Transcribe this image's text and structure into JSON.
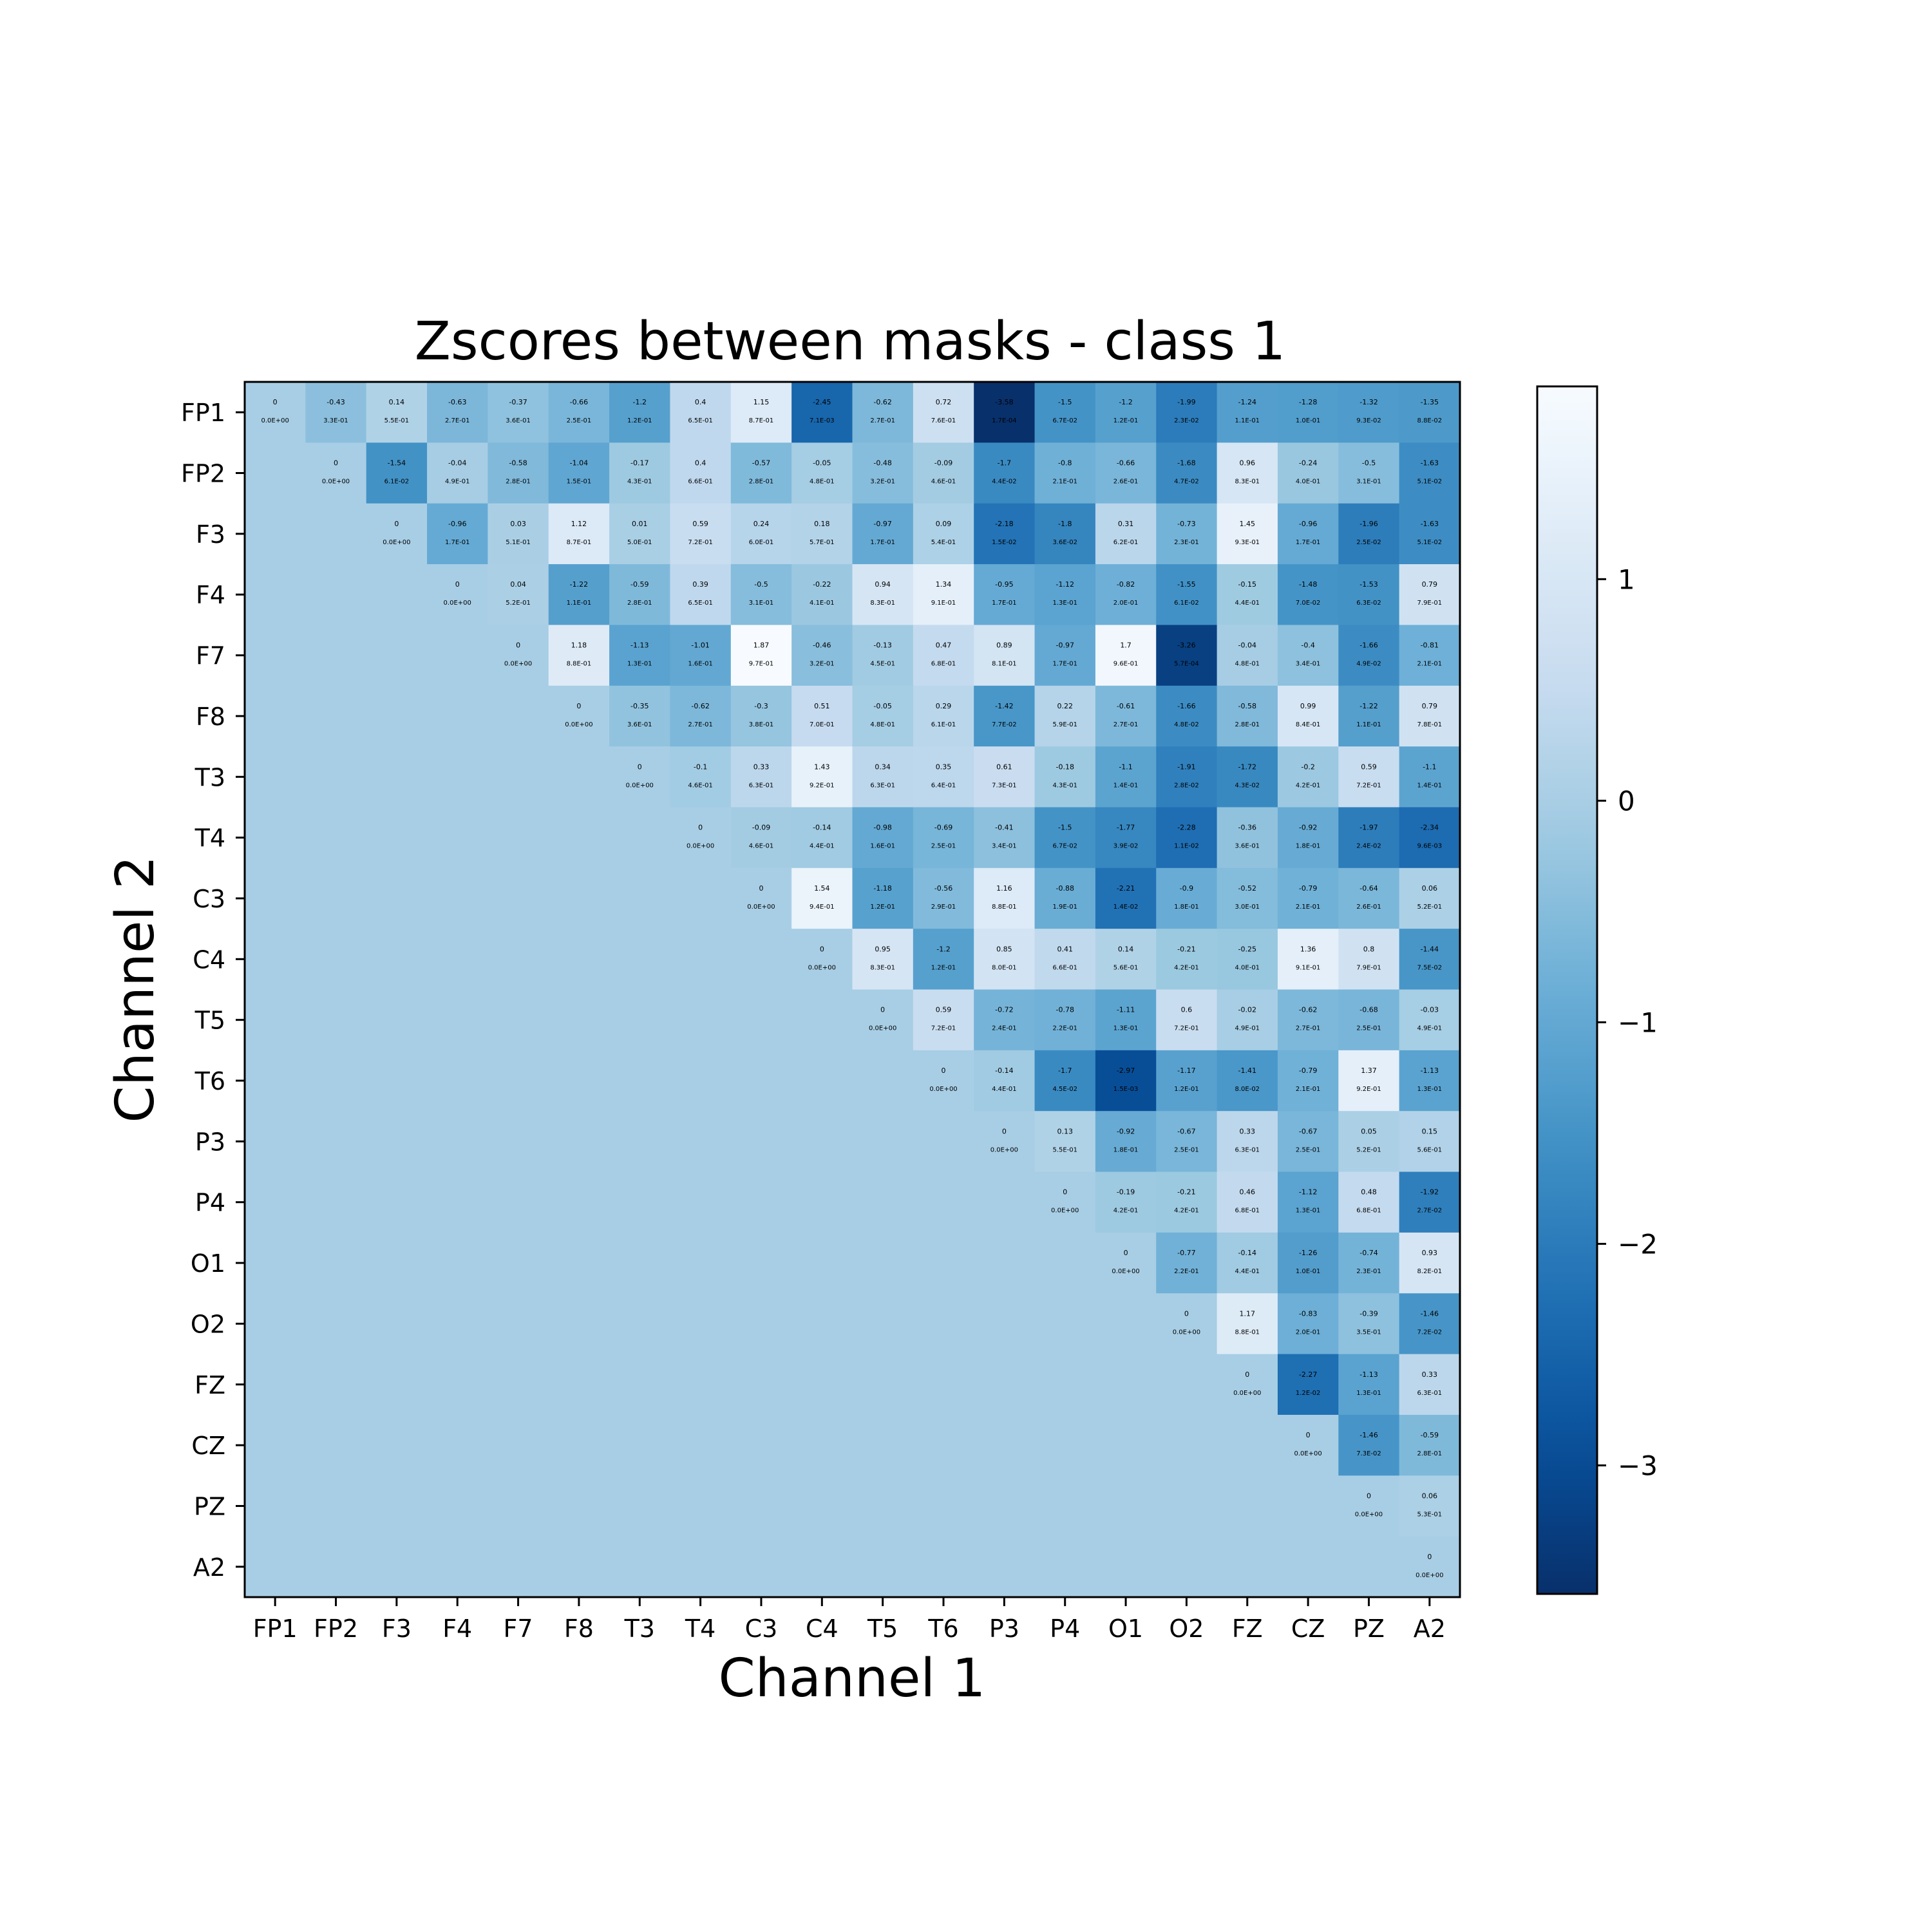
{
  "chart_data": {
    "type": "heatmap",
    "title": "Zscores between masks - class 1",
    "xlabel": "Channel 1",
    "ylabel": "Channel 2",
    "channels": [
      "FP1",
      "FP2",
      "F3",
      "F4",
      "F7",
      "F8",
      "T3",
      "T4",
      "C3",
      "C4",
      "T5",
      "T6",
      "P3",
      "P4",
      "O1",
      "O2",
      "FZ",
      "CZ",
      "PZ",
      "A2"
    ],
    "colormap": "Blues_r",
    "vmin": -3.58,
    "vmax": 1.87,
    "colorbar_ticks": [
      1,
      0,
      -1,
      -2,
      -3
    ],
    "colorbar_tick_labels": [
      "1",
      "0",
      "−1",
      "−2",
      "−3"
    ],
    "lower_triangle_value": 0.0,
    "zscores": [
      [
        0.0,
        -0.43,
        0.14,
        -0.63,
        -0.37,
        -0.66,
        -1.2,
        0.4,
        1.15,
        -2.45,
        -0.62,
        0.72,
        -3.58,
        -1.5,
        -1.2,
        -1.99,
        -1.24,
        -1.28,
        -1.32,
        -1.35
      ],
      [
        null,
        0.0,
        -1.54,
        -0.04,
        -0.58,
        -1.04,
        -0.17,
        0.4,
        -0.57,
        -0.05,
        -0.48,
        -0.09,
        -1.7,
        -0.8,
        -0.66,
        -1.68,
        0.96,
        -0.24,
        -0.5,
        -1.63
      ],
      [
        null,
        null,
        0.0,
        -0.96,
        0.03,
        1.12,
        0.01,
        0.59,
        0.24,
        0.18,
        -0.97,
        0.09,
        -2.18,
        -1.8,
        0.31,
        -0.73,
        1.45,
        -0.96,
        -1.96,
        -1.63
      ],
      [
        null,
        null,
        null,
        0.0,
        0.04,
        -1.22,
        -0.59,
        0.39,
        -0.5,
        -0.22,
        0.94,
        1.34,
        -0.95,
        -1.12,
        -0.82,
        -1.55,
        -0.15,
        -1.48,
        -1.53,
        0.79
      ],
      [
        null,
        null,
        null,
        null,
        0.0,
        1.18,
        -1.13,
        -1.01,
        1.87,
        -0.46,
        -0.13,
        0.47,
        0.89,
        -0.97,
        1.7,
        -3.26,
        -0.04,
        -0.4,
        -1.66,
        -0.81
      ],
      [
        null,
        null,
        null,
        null,
        null,
        0.0,
        -0.35,
        -0.62,
        -0.3,
        0.51,
        -0.05,
        0.29,
        -1.42,
        0.22,
        -0.61,
        -1.66,
        -0.58,
        0.99,
        -1.22,
        0.79
      ],
      [
        null,
        null,
        null,
        null,
        null,
        null,
        0.0,
        -0.1,
        0.33,
        1.43,
        0.34,
        0.35,
        0.61,
        -0.18,
        -1.1,
        -1.91,
        -1.72,
        -0.2,
        0.59,
        -1.1
      ],
      [
        null,
        null,
        null,
        null,
        null,
        null,
        null,
        0.0,
        -0.09,
        -0.14,
        -0.98,
        -0.69,
        -0.41,
        -1.5,
        -1.77,
        -2.28,
        -0.36,
        -0.92,
        -1.97,
        -2.34
      ],
      [
        null,
        null,
        null,
        null,
        null,
        null,
        null,
        null,
        0.0,
        1.54,
        -1.18,
        -0.56,
        1.16,
        -0.88,
        -2.21,
        -0.9,
        -0.52,
        -0.79,
        -0.64,
        0.06
      ],
      [
        null,
        null,
        null,
        null,
        null,
        null,
        null,
        null,
        null,
        0.0,
        0.95,
        -1.2,
        0.85,
        0.41,
        0.14,
        -0.21,
        -0.25,
        1.36,
        0.8,
        -1.44
      ],
      [
        null,
        null,
        null,
        null,
        null,
        null,
        null,
        null,
        null,
        null,
        0.0,
        0.59,
        -0.72,
        -0.78,
        -1.11,
        0.6,
        -0.02,
        -0.62,
        -0.68,
        -0.03
      ],
      [
        null,
        null,
        null,
        null,
        null,
        null,
        null,
        null,
        null,
        null,
        null,
        0.0,
        -0.14,
        -1.7,
        -2.97,
        -1.17,
        -1.41,
        -0.79,
        1.37,
        -1.13
      ],
      [
        null,
        null,
        null,
        null,
        null,
        null,
        null,
        null,
        null,
        null,
        null,
        null,
        0.0,
        0.13,
        -0.92,
        -0.67,
        0.33,
        -0.67,
        0.05,
        0.15
      ],
      [
        null,
        null,
        null,
        null,
        null,
        null,
        null,
        null,
        null,
        null,
        null,
        null,
        null,
        0.0,
        -0.19,
        -0.21,
        0.46,
        -1.12,
        0.48,
        -1.92
      ],
      [
        null,
        null,
        null,
        null,
        null,
        null,
        null,
        null,
        null,
        null,
        null,
        null,
        null,
        null,
        0.0,
        -0.77,
        -0.14,
        -1.26,
        -0.74,
        0.93
      ],
      [
        null,
        null,
        null,
        null,
        null,
        null,
        null,
        null,
        null,
        null,
        null,
        null,
        null,
        null,
        null,
        0.0,
        1.17,
        -0.83,
        -0.39,
        -1.46
      ],
      [
        null,
        null,
        null,
        null,
        null,
        null,
        null,
        null,
        null,
        null,
        null,
        null,
        null,
        null,
        null,
        null,
        0.0,
        -2.27,
        -1.13,
        0.33
      ],
      [
        null,
        null,
        null,
        null,
        null,
        null,
        null,
        null,
        null,
        null,
        null,
        null,
        null,
        null,
        null,
        null,
        null,
        0.0,
        -1.46,
        -0.59
      ],
      [
        null,
        null,
        null,
        null,
        null,
        null,
        null,
        null,
        null,
        null,
        null,
        null,
        null,
        null,
        null,
        null,
        null,
        null,
        0.0,
        0.06
      ],
      [
        null,
        null,
        null,
        null,
        null,
        null,
        null,
        null,
        null,
        null,
        null,
        null,
        null,
        null,
        null,
        null,
        null,
        null,
        null,
        0.0
      ]
    ],
    "pvalues": [
      [
        "0.0E+00",
        "3.3E-01",
        "5.5E-01",
        "2.7E-01",
        "3.6E-01",
        "2.5E-01",
        "1.2E-01",
        "6.5E-01",
        "8.7E-01",
        "7.1E-03",
        "2.7E-01",
        "7.6E-01",
        "1.7E-04",
        "6.7E-02",
        "1.2E-01",
        "2.3E-02",
        "1.1E-01",
        "1.0E-01",
        "9.3E-02",
        "8.8E-02"
      ],
      [
        null,
        "0.0E+00",
        "6.1E-02",
        "4.9E-01",
        "2.8E-01",
        "1.5E-01",
        "4.3E-01",
        "6.6E-01",
        "2.8E-01",
        "4.8E-01",
        "3.2E-01",
        "4.6E-01",
        "4.4E-02",
        "2.1E-01",
        "2.6E-01",
        "4.7E-02",
        "8.3E-01",
        "4.0E-01",
        "3.1E-01",
        "5.1E-02"
      ],
      [
        null,
        null,
        "0.0E+00",
        "1.7E-01",
        "5.1E-01",
        "8.7E-01",
        "5.0E-01",
        "7.2E-01",
        "6.0E-01",
        "5.7E-01",
        "1.7E-01",
        "5.4E-01",
        "1.5E-02",
        "3.6E-02",
        "6.2E-01",
        "2.3E-01",
        "9.3E-01",
        "1.7E-01",
        "2.5E-02",
        "5.1E-02"
      ],
      [
        null,
        null,
        null,
        "0.0E+00",
        "5.2E-01",
        "1.1E-01",
        "2.8E-01",
        "6.5E-01",
        "3.1E-01",
        "4.1E-01",
        "8.3E-01",
        "9.1E-01",
        "1.7E-01",
        "1.3E-01",
        "2.0E-01",
        "6.1E-02",
        "4.4E-01",
        "7.0E-02",
        "6.3E-02",
        "7.9E-01"
      ],
      [
        null,
        null,
        null,
        null,
        "0.0E+00",
        "8.8E-01",
        "1.3E-01",
        "1.6E-01",
        "9.7E-01",
        "3.2E-01",
        "4.5E-01",
        "6.8E-01",
        "8.1E-01",
        "1.7E-01",
        "9.6E-01",
        "5.7E-04",
        "4.8E-01",
        "3.4E-01",
        "4.9E-02",
        "2.1E-01"
      ],
      [
        null,
        null,
        null,
        null,
        null,
        "0.0E+00",
        "3.6E-01",
        "2.7E-01",
        "3.8E-01",
        "7.0E-01",
        "4.8E-01",
        "6.1E-01",
        "7.7E-02",
        "5.9E-01",
        "2.7E-01",
        "4.8E-02",
        "2.8E-01",
        "8.4E-01",
        "1.1E-01",
        "7.8E-01"
      ],
      [
        null,
        null,
        null,
        null,
        null,
        null,
        "0.0E+00",
        "4.6E-01",
        "6.3E-01",
        "9.2E-01",
        "6.3E-01",
        "6.4E-01",
        "7.3E-01",
        "4.3E-01",
        "1.4E-01",
        "2.8E-02",
        "4.3E-02",
        "4.2E-01",
        "7.2E-01",
        "1.4E-01"
      ],
      [
        null,
        null,
        null,
        null,
        null,
        null,
        null,
        "0.0E+00",
        "4.6E-01",
        "4.4E-01",
        "1.6E-01",
        "2.5E-01",
        "3.4E-01",
        "6.7E-02",
        "3.9E-02",
        "1.1E-02",
        "3.6E-01",
        "1.8E-01",
        "2.4E-02",
        "9.6E-03"
      ],
      [
        null,
        null,
        null,
        null,
        null,
        null,
        null,
        null,
        "0.0E+00",
        "9.4E-01",
        "1.2E-01",
        "2.9E-01",
        "8.8E-01",
        "1.9E-01",
        "1.4E-02",
        "1.8E-01",
        "3.0E-01",
        "2.1E-01",
        "2.6E-01",
        "5.2E-01"
      ],
      [
        null,
        null,
        null,
        null,
        null,
        null,
        null,
        null,
        null,
        "0.0E+00",
        "8.3E-01",
        "1.2E-01",
        "8.0E-01",
        "6.6E-01",
        "5.6E-01",
        "4.2E-01",
        "4.0E-01",
        "9.1E-01",
        "7.9E-01",
        "7.5E-02"
      ],
      [
        null,
        null,
        null,
        null,
        null,
        null,
        null,
        null,
        null,
        null,
        "0.0E+00",
        "7.2E-01",
        "2.4E-01",
        "2.2E-01",
        "1.3E-01",
        "7.2E-01",
        "4.9E-01",
        "2.7E-01",
        "2.5E-01",
        "4.9E-01"
      ],
      [
        null,
        null,
        null,
        null,
        null,
        null,
        null,
        null,
        null,
        null,
        null,
        "0.0E+00",
        "4.4E-01",
        "4.5E-02",
        "1.5E-03",
        "1.2E-01",
        "8.0E-02",
        "2.1E-01",
        "9.2E-01",
        "1.3E-01"
      ],
      [
        null,
        null,
        null,
        null,
        null,
        null,
        null,
        null,
        null,
        null,
        null,
        null,
        "0.0E+00",
        "5.5E-01",
        "1.8E-01",
        "2.5E-01",
        "6.3E-01",
        "2.5E-01",
        "5.2E-01",
        "5.6E-01"
      ],
      [
        null,
        null,
        null,
        null,
        null,
        null,
        null,
        null,
        null,
        null,
        null,
        null,
        null,
        "0.0E+00",
        "4.2E-01",
        "4.2E-01",
        "6.8E-01",
        "1.3E-01",
        "6.8E-01",
        "2.7E-02"
      ],
      [
        null,
        null,
        null,
        null,
        null,
        null,
        null,
        null,
        null,
        null,
        null,
        null,
        null,
        null,
        "0.0E+00",
        "2.2E-01",
        "4.4E-01",
        "1.0E-01",
        "2.3E-01",
        "8.2E-01"
      ],
      [
        null,
        null,
        null,
        null,
        null,
        null,
        null,
        null,
        null,
        null,
        null,
        null,
        null,
        null,
        null,
        "0.0E+00",
        "8.8E-01",
        "2.0E-01",
        "3.5E-01",
        "7.2E-02"
      ],
      [
        null,
        null,
        null,
        null,
        null,
        null,
        null,
        null,
        null,
        null,
        null,
        null,
        null,
        null,
        null,
        null,
        "0.0E+00",
        "1.2E-02",
        "1.3E-01",
        "6.3E-01"
      ],
      [
        null,
        null,
        null,
        null,
        null,
        null,
        null,
        null,
        null,
        null,
        null,
        null,
        null,
        null,
        null,
        null,
        null,
        "0.0E+00",
        "7.3E-02",
        "2.8E-01"
      ],
      [
        null,
        null,
        null,
        null,
        null,
        null,
        null,
        null,
        null,
        null,
        null,
        null,
        null,
        null,
        null,
        null,
        null,
        null,
        "0.0E+00",
        "5.3E-01"
      ],
      [
        null,
        null,
        null,
        null,
        null,
        null,
        null,
        null,
        null,
        null,
        null,
        null,
        null,
        null,
        null,
        null,
        null,
        null,
        null,
        "0.0E+00"
      ]
    ]
  }
}
